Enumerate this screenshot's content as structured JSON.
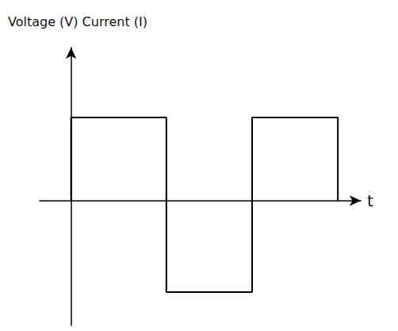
{
  "chart_data": {
    "type": "line",
    "ylabel": "Voltage (V) Current (I)",
    "xlabel": "t",
    "x": [
      0,
      0,
      1,
      1,
      1.9,
      1.9,
      2.8,
      2.8
    ],
    "values": [
      0,
      1,
      1,
      -1.1,
      -1.1,
      1,
      1,
      0
    ],
    "color": "#000000",
    "marker": "none",
    "xlim": [
      -0.33,
      3.04
    ],
    "ylim": [
      -1.5,
      1.84
    ],
    "grid": false,
    "tick_labels": false
  }
}
